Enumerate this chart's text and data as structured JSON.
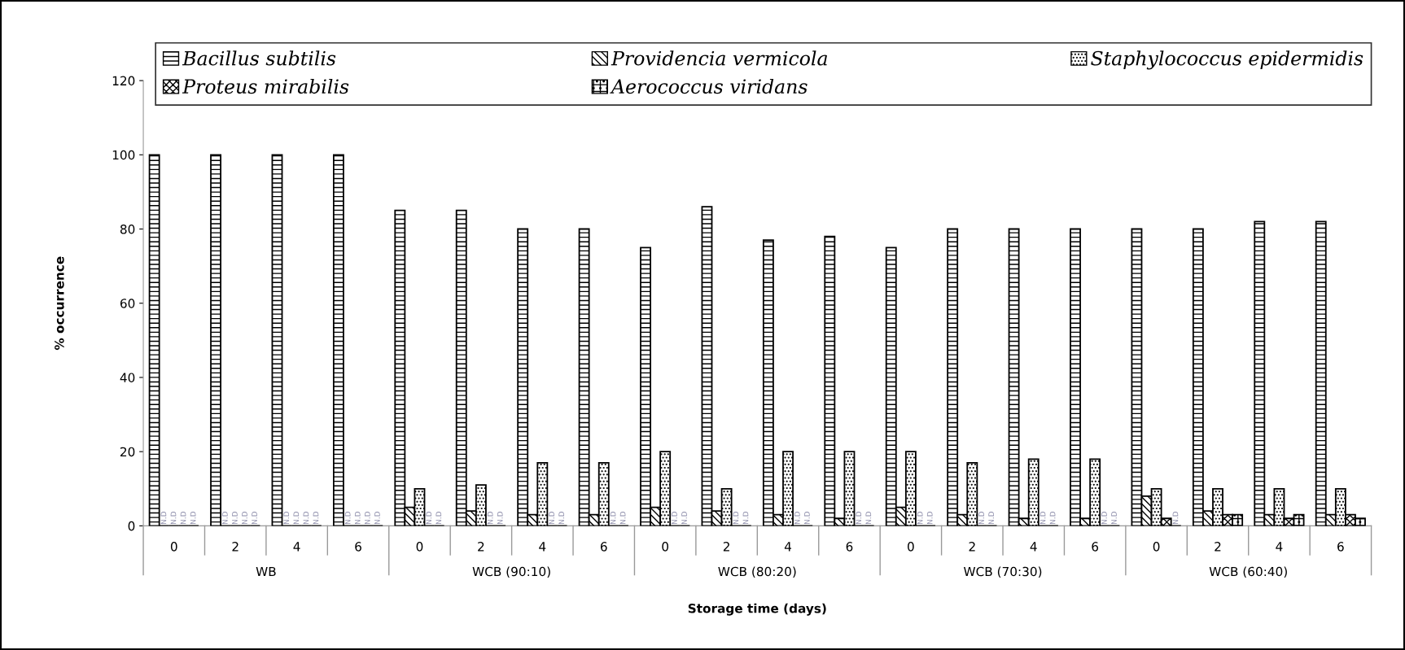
{
  "chart_data": {
    "type": "bar",
    "xlabel": "Storage time (days)",
    "ylabel": "% occurrence",
    "categories": [
      "0",
      "2",
      "4",
      "6",
      "0",
      "2",
      "4",
      "6",
      "0",
      "2",
      "4",
      "6",
      "0",
      "2",
      "4",
      "6",
      "0",
      "2",
      "4",
      "6"
    ],
    "annotations": [
      "WB",
      "WCB (90:10)",
      "WCB (80:20)",
      "WCB (70:30)",
      "WCB (60:40)"
    ],
    "series": [
      {
        "name": "Bacillus subtilis",
        "color": "#000000",
        "values": [
          100,
          100,
          100,
          100,
          85,
          85,
          80,
          80,
          75,
          86,
          77,
          78,
          75,
          80,
          80,
          80,
          80,
          80,
          82,
          82
        ]
      },
      {
        "name": "Providencia vermicola",
        "color": "#000000",
        "values": [
          0,
          0,
          0,
          0,
          5,
          4,
          3,
          3,
          5,
          4,
          3,
          2,
          5,
          3,
          2,
          2,
          8,
          4,
          3,
          3
        ],
        "value_labels": [
          "N.D",
          "N.D",
          "N.D",
          "N.D",
          null,
          null,
          null,
          null,
          null,
          null,
          null,
          null,
          null,
          null,
          null,
          null,
          null,
          null,
          null,
          null
        ]
      },
      {
        "name": "Staphylococcus epidermidis",
        "color": "#000000",
        "values": [
          0,
          0,
          0,
          0,
          10,
          11,
          17,
          17,
          20,
          10,
          20,
          20,
          20,
          17,
          18,
          18,
          10,
          10,
          10,
          10
        ],
        "value_labels": [
          "N.D",
          "N.D",
          "N.D",
          "N.D",
          null,
          null,
          null,
          null,
          null,
          null,
          null,
          null,
          null,
          null,
          null,
          null,
          null,
          null,
          null,
          null
        ]
      },
      {
        "name": "Proteus mirabilis",
        "color": "#000000",
        "values": [
          0,
          0,
          0,
          0,
          0,
          0,
          0,
          0,
          0,
          0,
          0,
          0,
          0,
          0,
          0,
          0,
          2,
          3,
          2,
          3
        ],
        "value_labels": [
          "N.D",
          "N.D",
          "N.D",
          "N.D",
          "N.D",
          "N.D",
          "N.D",
          "N.D",
          "N.D",
          "N.D",
          "N.D",
          "N.D",
          "N.D",
          "N.D",
          "N.D",
          "N.D",
          null,
          null,
          null,
          null
        ]
      },
      {
        "name": "Aerococcus viridans",
        "color": "#000000",
        "values": [
          0,
          0,
          0,
          0,
          0,
          0,
          0,
          0,
          0,
          0,
          0,
          0,
          0,
          0,
          0,
          0,
          0,
          3,
          3,
          2
        ],
        "value_labels": [
          "N.D",
          "N.D",
          "N.D",
          "N.D",
          "N.D",
          "N.D",
          "N.D",
          "N.D",
          "N.D",
          "N.D",
          "N.D",
          "N.D",
          "N.D",
          "N.D",
          "N.D",
          "N.D",
          "N.D",
          null,
          null,
          null
        ]
      }
    ],
    "ylim": [
      0,
      120
    ],
    "yticks": [
      0,
      20,
      40,
      60,
      80,
      100,
      120
    ],
    "grid": false,
    "legend": "top"
  }
}
